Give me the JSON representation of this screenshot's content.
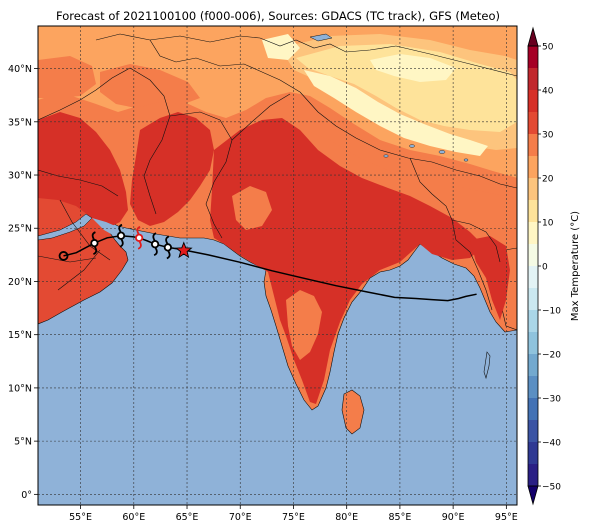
{
  "title": "Forecast of 2021100100 (f000-006), Sources: GDACS (TC track), GFS (Meteo)",
  "map": {
    "lon_range": [
      51,
      96
    ],
    "lat_range": [
      -1,
      44
    ],
    "lon_ticks": [
      {
        "v": 55,
        "label": "55°E"
      },
      {
        "v": 60,
        "label": "60°E"
      },
      {
        "v": 65,
        "label": "65°E"
      },
      {
        "v": 70,
        "label": "70°E"
      },
      {
        "v": 75,
        "label": "75°E"
      },
      {
        "v": 80,
        "label": "80°E"
      },
      {
        "v": 85,
        "label": "85°E"
      },
      {
        "v": 90,
        "label": "90°E"
      },
      {
        "v": 95,
        "label": "95°E"
      }
    ],
    "lat_ticks": [
      {
        "v": 0,
        "label": "0°"
      },
      {
        "v": 5,
        "label": "5°N"
      },
      {
        "v": 10,
        "label": "10°N"
      },
      {
        "v": 15,
        "label": "15°N"
      },
      {
        "v": 20,
        "label": "20°N"
      },
      {
        "v": 25,
        "label": "25°N"
      },
      {
        "v": 30,
        "label": "30°N"
      },
      {
        "v": 35,
        "label": "35°N"
      },
      {
        "v": 40,
        "label": "40°N"
      }
    ],
    "grid": true,
    "ocean_color": "#8fb2d8"
  },
  "colorbar": {
    "label": "Max Temperature (°C)",
    "min": -50,
    "max": 50,
    "ticks": [
      {
        "v": 50,
        "label": "50"
      },
      {
        "v": 40,
        "label": "40"
      },
      {
        "v": 30,
        "label": "30"
      },
      {
        "v": 20,
        "label": "20"
      },
      {
        "v": 10,
        "label": "10"
      },
      {
        "v": 0,
        "label": "0"
      },
      {
        "v": -10,
        "label": "−10"
      },
      {
        "v": -20,
        "label": "−20"
      },
      {
        "v": -30,
        "label": "−30"
      },
      {
        "v": -40,
        "label": "−40"
      },
      {
        "v": -50,
        "label": "−50"
      }
    ],
    "bands": [
      {
        "from": 45,
        "to": 50,
        "color": "#a50026"
      },
      {
        "from": 40,
        "to": 45,
        "color": "#c1272d"
      },
      {
        "from": 35,
        "to": 40,
        "color": "#d63027"
      },
      {
        "from": 30,
        "to": 35,
        "color": "#e34a33"
      },
      {
        "from": 25,
        "to": 30,
        "color": "#f47d4a"
      },
      {
        "from": 20,
        "to": 25,
        "color": "#fca45f"
      },
      {
        "from": 15,
        "to": 20,
        "color": "#fdc47d"
      },
      {
        "from": 10,
        "to": 15,
        "color": "#fee39a"
      },
      {
        "from": 5,
        "to": 10,
        "color": "#fff6c4"
      },
      {
        "from": 0,
        "to": 5,
        "color": "#f5fbe5"
      },
      {
        "from": -5,
        "to": 0,
        "color": "#e3f3f5"
      },
      {
        "from": -10,
        "to": -5,
        "color": "#cbe8f0"
      },
      {
        "from": -15,
        "to": -10,
        "color": "#aad6e8"
      },
      {
        "from": -20,
        "to": -15,
        "color": "#8fc3dd"
      },
      {
        "from": -25,
        "to": -20,
        "color": "#73a9cf"
      },
      {
        "from": -30,
        "to": -25,
        "color": "#5b8fc3"
      },
      {
        "from": -35,
        "to": -30,
        "color": "#4372b5"
      },
      {
        "from": -40,
        "to": -35,
        "color": "#3b54a4"
      },
      {
        "from": -45,
        "to": -40,
        "color": "#2f3993"
      },
      {
        "from": -50,
        "to": -45,
        "color": "#2a1f85"
      }
    ],
    "over_color": "#67001f",
    "under_color": "#13006b"
  },
  "cyclone": {
    "track": [
      [
        53.4,
        22.4
      ],
      [
        54.6,
        22.7
      ],
      [
        56.3,
        23.6
      ],
      [
        57.5,
        24.1
      ],
      [
        58.8,
        24.3
      ],
      [
        59.9,
        24.2
      ],
      [
        60.5,
        24.1
      ],
      [
        61.3,
        23.8
      ],
      [
        62.0,
        23.5
      ],
      [
        63.2,
        23.2
      ],
      [
        64.5,
        23.0
      ],
      [
        65.0,
        22.9
      ],
      [
        67.0,
        22.5
      ],
      [
        70.0,
        21.8
      ],
      [
        73.0,
        21.0
      ],
      [
        76.0,
        20.3
      ],
      [
        79.0,
        19.6
      ],
      [
        82.0,
        19.0
      ],
      [
        84.5,
        18.5
      ],
      [
        86.5,
        18.4
      ],
      [
        88.0,
        18.3
      ],
      [
        89.5,
        18.2
      ],
      [
        90.5,
        18.4
      ],
      [
        91.2,
        18.6
      ],
      [
        92.2,
        18.8
      ]
    ],
    "symbols": [
      {
        "lon": 53.4,
        "lat": 22.4,
        "kind": "low"
      },
      {
        "lon": 56.3,
        "lat": 23.6,
        "kind": "storm"
      },
      {
        "lon": 58.8,
        "lat": 24.3,
        "kind": "storm"
      },
      {
        "lon": 60.5,
        "lat": 24.1,
        "kind": "storm-red"
      },
      {
        "lon": 62.0,
        "lat": 23.5,
        "kind": "storm"
      },
      {
        "lon": 63.2,
        "lat": 23.2,
        "kind": "storm"
      }
    ],
    "current_position": {
      "lon": 64.7,
      "lat": 22.9
    },
    "current_color": "#e21b1b"
  }
}
